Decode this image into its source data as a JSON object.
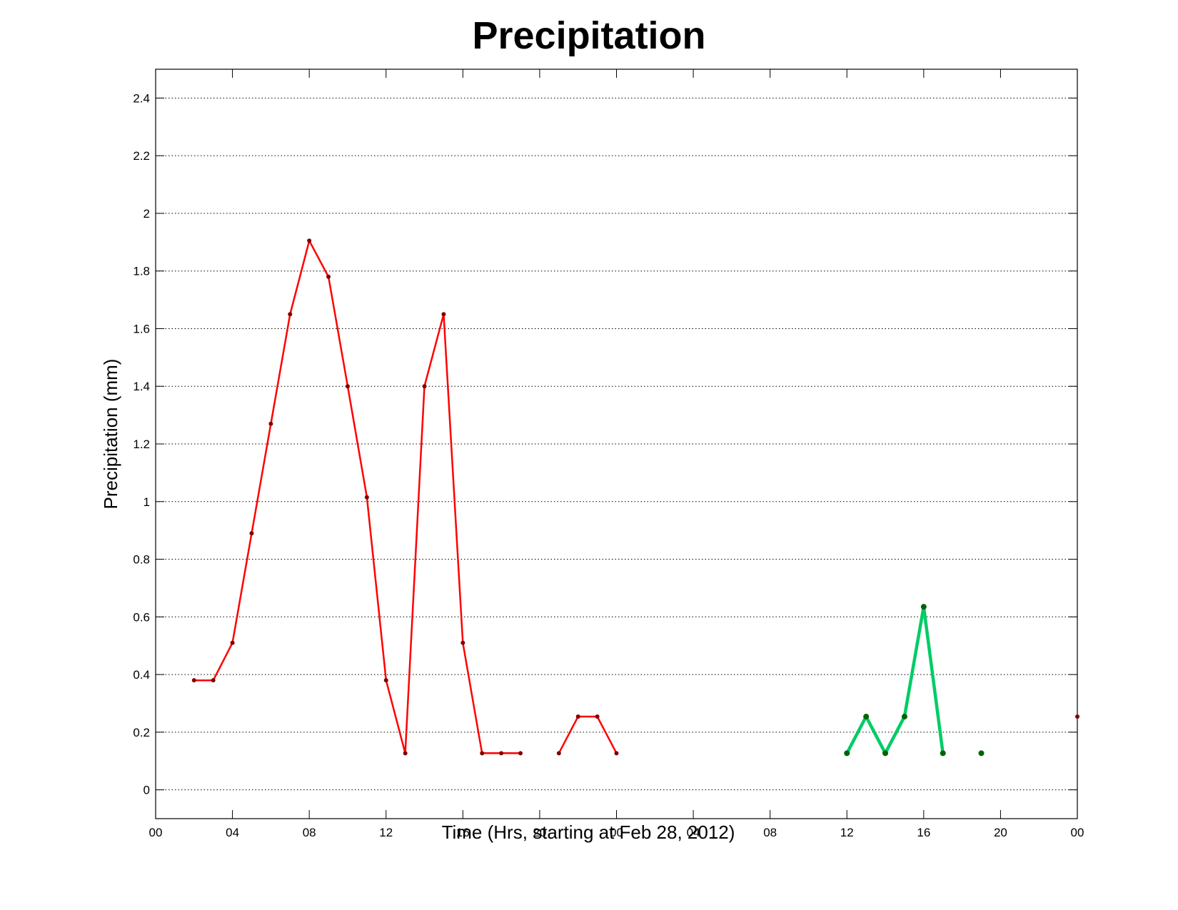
{
  "chart_data": {
    "type": "line",
    "title": "Precipitation",
    "xlabel": "Time (Hrs, starting at Feb 28, 2012)",
    "ylabel": "Precipitation (mm)",
    "xlim": [
      0,
      48
    ],
    "ylim": [
      -0.1,
      2.5
    ],
    "grid": "horizontal dotted",
    "x_ticks": [
      0,
      4,
      8,
      12,
      16,
      20,
      24,
      28,
      32,
      36,
      40,
      44,
      48
    ],
    "x_tick_labels": [
      "00",
      "04",
      "08",
      "12",
      "16",
      "20",
      "00",
      "04",
      "08",
      "12",
      "16",
      "20",
      "00"
    ],
    "y_ticks": [
      0,
      0.2,
      0.4,
      0.6,
      0.8,
      1,
      1.2,
      1.4,
      1.6,
      1.8,
      2,
      2.2,
      2.4
    ],
    "y_tick_labels": [
      "0",
      "0.2",
      "0.4",
      "0.6",
      "0.8",
      "1",
      "1.2",
      "1.4",
      "1.6",
      "1.8",
      "2",
      "2.2",
      "2.4"
    ],
    "series": [
      {
        "color": "#ff0000",
        "marker_color": "#800000",
        "line_width": "thin",
        "segments": [
          [
            [
              2,
              0.38
            ],
            [
              3,
              0.38
            ],
            [
              4,
              0.51
            ],
            [
              5,
              0.89
            ],
            [
              6,
              1.27
            ],
            [
              7,
              1.65
            ],
            [
              8,
              1.905
            ],
            [
              9,
              1.78
            ],
            [
              10,
              1.4
            ],
            [
              11,
              1.015
            ],
            [
              12,
              0.38
            ],
            [
              13,
              0.127
            ],
            [
              14,
              1.4
            ],
            [
              15,
              1.65
            ],
            [
              16,
              0.51
            ],
            [
              17,
              0.127
            ],
            [
              18,
              0.127
            ],
            [
              19,
              0.127
            ]
          ],
          [
            [
              21,
              0.127
            ],
            [
              22,
              0.254
            ],
            [
              23,
              0.254
            ],
            [
              24,
              0.127
            ]
          ],
          [
            [
              48,
              0.254
            ]
          ]
        ]
      },
      {
        "color": "#00cc66",
        "marker_color": "#006400",
        "line_width": "thick",
        "segments": [
          [
            [
              36,
              0.127
            ],
            [
              37,
              0.254
            ],
            [
              38,
              0.127
            ],
            [
              39,
              0.254
            ],
            [
              40,
              0.635
            ],
            [
              41,
              0.127
            ]
          ],
          [
            [
              43,
              0.127
            ]
          ]
        ]
      }
    ]
  }
}
